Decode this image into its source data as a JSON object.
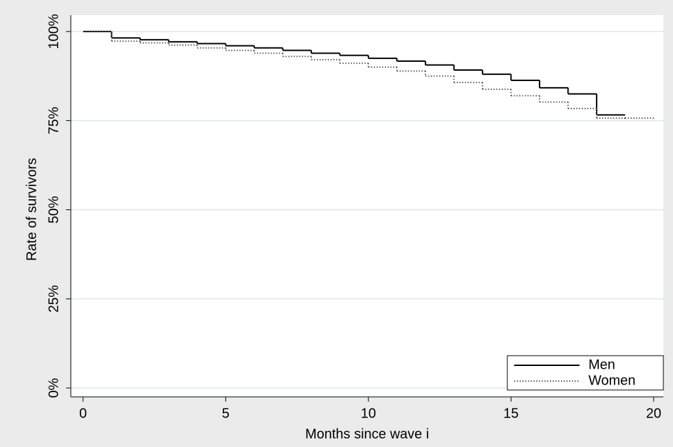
{
  "chart_data": {
    "type": "step",
    "x_label": "Months since wave i",
    "y_label": "Rate of survivors",
    "x": [
      0,
      1,
      2,
      3,
      4,
      5,
      6,
      7,
      8,
      9,
      10,
      11,
      12,
      13,
      14,
      15,
      16,
      17,
      18,
      19,
      20
    ],
    "series": [
      {
        "name": "Men",
        "color": "#000000",
        "dash": "solid",
        "values": [
          100,
          98.2,
          97.7,
          97.1,
          96.6,
          96.0,
          95.4,
          94.7,
          93.9,
          93.3,
          92.5,
          91.7,
          90.6,
          89.2,
          88.0,
          86.3,
          84.2,
          82.5,
          76.6,
          76.6,
          null
        ]
      },
      {
        "name": "Women",
        "color": "#555555",
        "dash": "dotted",
        "values": [
          100,
          97.3,
          96.8,
          96.2,
          95.4,
          94.7,
          93.9,
          93.0,
          92.1,
          91.1,
          90.0,
          88.9,
          87.5,
          85.7,
          83.8,
          82.0,
          80.2,
          78.4,
          75.7,
          75.7,
          75.7
        ]
      }
    ],
    "xlim": [
      -0.43,
      20.34
    ],
    "ylim": [
      -2.5,
      104.6
    ],
    "xticks": [
      0,
      5,
      10,
      15,
      20
    ],
    "yticks": [
      {
        "value": 0,
        "label": "0%"
      },
      {
        "value": 25,
        "label": "25%"
      },
      {
        "value": 50,
        "label": "50%"
      },
      {
        "value": 75,
        "label": "75%"
      },
      {
        "value": 100,
        "label": "100%"
      }
    ],
    "grid": true,
    "legend": "lower right"
  }
}
